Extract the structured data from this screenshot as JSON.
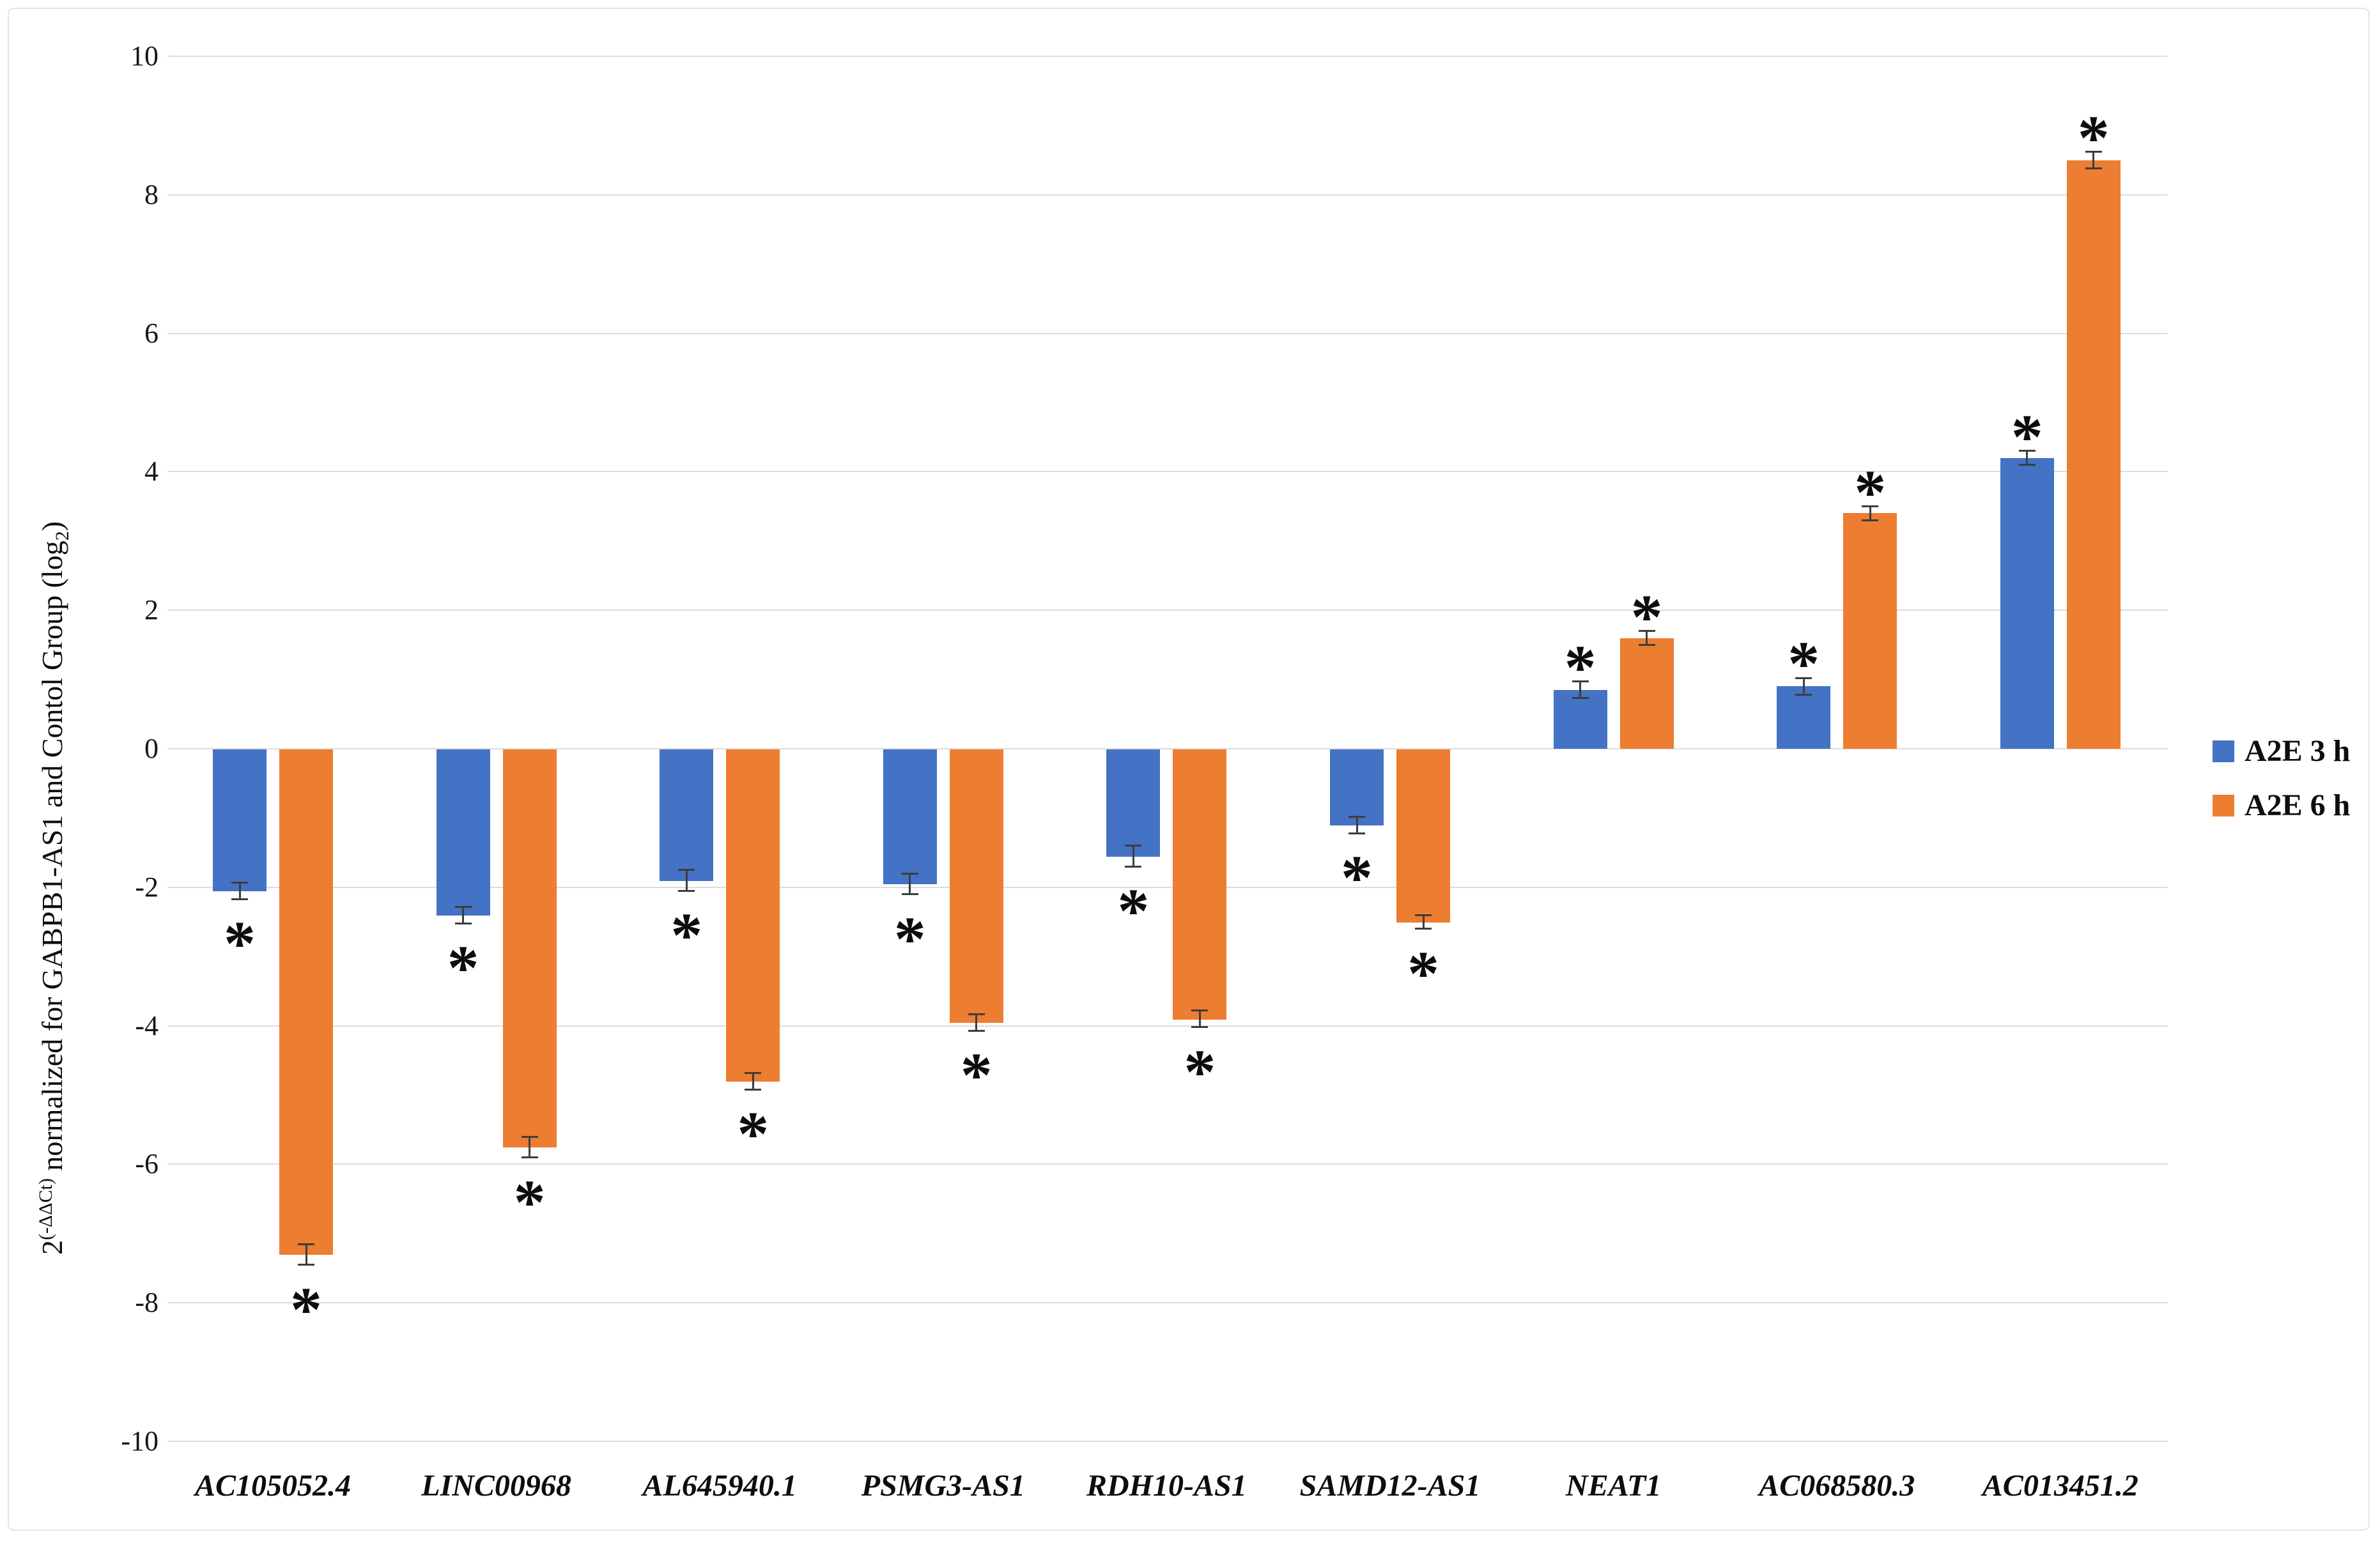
{
  "figure": {
    "background": "#ffffff",
    "frame_border_color": "#e4e4e4"
  },
  "chart_data": {
    "type": "bar",
    "title": "",
    "xlabel": "",
    "ylabel": {
      "prefix": "2",
      "superscript": "(-ΔΔCt)",
      "main": " normalized for GABPB1-AS1 and Contol Group (log",
      "subscript": "2",
      "suffix": ")"
    },
    "categories": [
      "AC105052.4",
      "LINC00968",
      "AL645940.1",
      "PSMG3-AS1",
      "RDH10-AS1",
      "SAMD12-AS1",
      "NEAT1",
      "AC068580.3",
      "AC013451.2"
    ],
    "series": [
      {
        "name": "A2E 3 h",
        "color": "#4472C4",
        "values": [
          -2.05,
          -2.4,
          -1.9,
          -1.95,
          -1.55,
          -1.1,
          0.85,
          0.9,
          4.2
        ],
        "errors": [
          0.12,
          0.12,
          0.15,
          0.15,
          0.15,
          0.12,
          0.12,
          0.12,
          0.1
        ],
        "significant": [
          true,
          true,
          true,
          true,
          true,
          true,
          true,
          true,
          true
        ]
      },
      {
        "name": "A2E 6 h",
        "color": "#ED7D31",
        "values": [
          -7.3,
          -5.75,
          -4.8,
          -3.95,
          -3.9,
          -2.5,
          1.6,
          3.4,
          8.5
        ],
        "errors": [
          0.15,
          0.15,
          0.12,
          0.12,
          0.12,
          0.1,
          0.1,
          0.1,
          0.12
        ],
        "significant": [
          true,
          true,
          true,
          true,
          true,
          true,
          true,
          true,
          true
        ]
      }
    ],
    "ylim": [
      -10,
      10
    ],
    "yticks": [
      "10",
      "8",
      "6",
      "4",
      "2",
      "0",
      "-2",
      "-4",
      "-6",
      "-8",
      "-10"
    ],
    "ytick_values": [
      10,
      8,
      6,
      4,
      2,
      0,
      -2,
      -4,
      -6,
      -8,
      -10
    ],
    "grid": true,
    "gridline_color": "#dcdcdc",
    "legend_position": "right",
    "significance_marker": "*",
    "error_bar_color": "#3d3d3d"
  }
}
